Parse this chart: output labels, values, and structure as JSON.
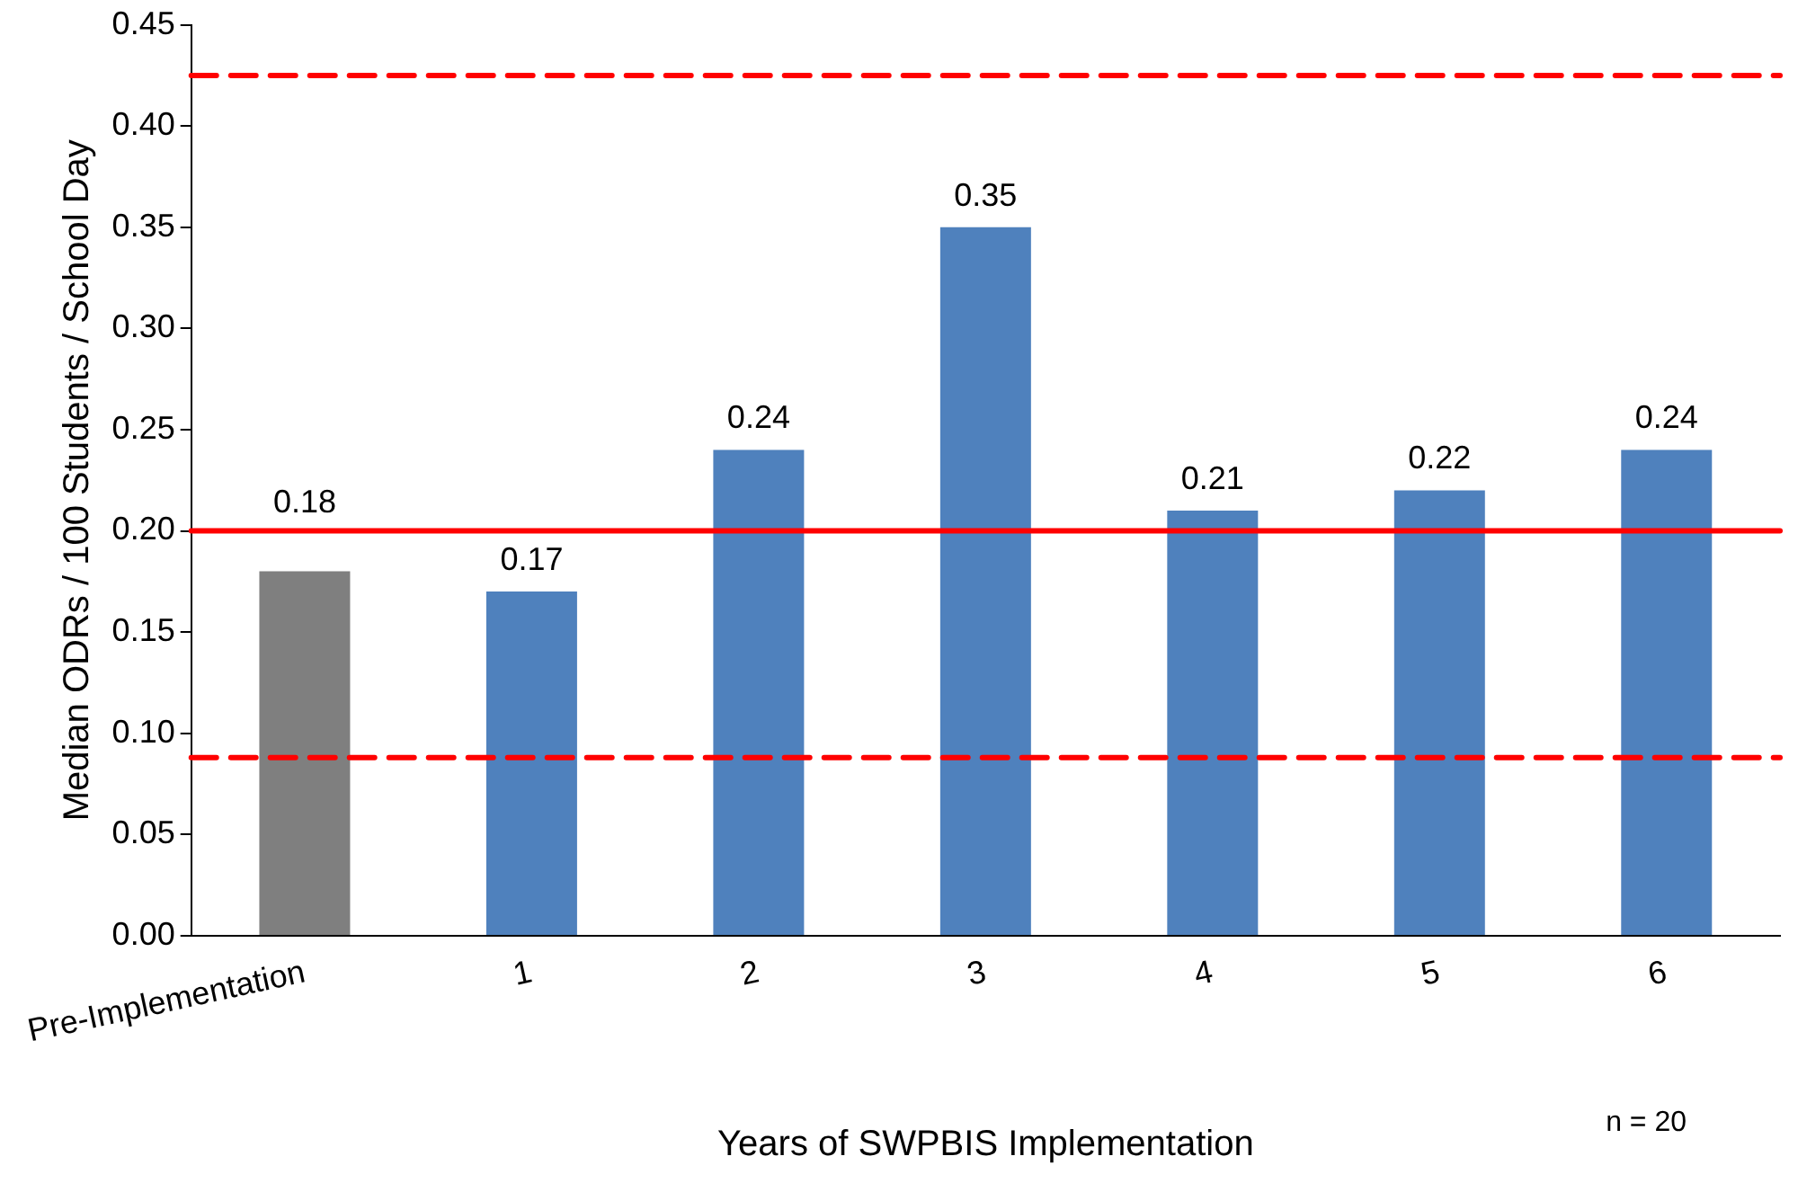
{
  "chart_data": {
    "type": "bar",
    "xlabel": "Years of SWPBIS Implementation",
    "ylabel": "Median ODRs / 100 Students / School Day",
    "categories": [
      "Pre-Implementation",
      "1",
      "2",
      "3",
      "4",
      "5",
      "6"
    ],
    "values": [
      0.18,
      0.17,
      0.24,
      0.35,
      0.21,
      0.22,
      0.24
    ],
    "colors": [
      "#7f7f7f",
      "#4f81bd",
      "#4f81bd",
      "#4f81bd",
      "#4f81bd",
      "#4f81bd",
      "#4f81bd"
    ],
    "data_labels": true,
    "ylim": [
      0,
      0.45
    ],
    "yticks": [
      {
        "value": 0,
        "label": "0.00"
      },
      {
        "value": 0.05,
        "label": "0.05"
      },
      {
        "value": 0.1,
        "label": "0.10"
      },
      {
        "value": 0.15,
        "label": "0.15"
      },
      {
        "value": 0.2,
        "label": "0.20"
      },
      {
        "value": 0.25,
        "label": "0.25"
      },
      {
        "value": 0.3,
        "label": "0.30"
      },
      {
        "value": 0.35,
        "label": "0.35"
      },
      {
        "value": 0.4,
        "label": "0.40"
      },
      {
        "value": 0.45,
        "label": "0.45"
      }
    ],
    "ref_lines": [
      {
        "axis": "y",
        "value": 0.2,
        "color": "#ff0000",
        "line_style": "solid"
      },
      {
        "axis": "y",
        "value": 0.425,
        "color": "#ff0000",
        "line_style": "dashed"
      },
      {
        "axis": "y",
        "value": 0.088,
        "color": "#ff0000",
        "line_style": "dashed"
      }
    ],
    "annotations": [
      "n = 20"
    ],
    "grid": false,
    "legend": false
  }
}
